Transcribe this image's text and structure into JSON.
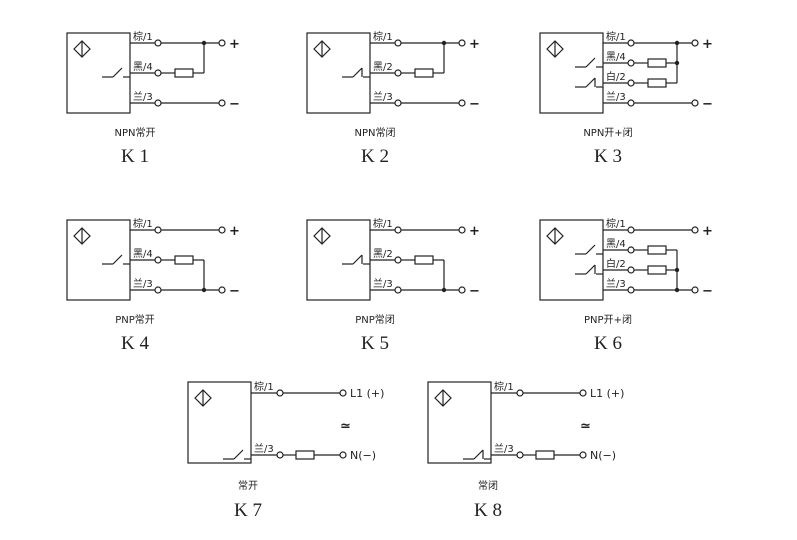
{
  "diagrams": [
    {
      "id": "K1",
      "caption": "NPN常开",
      "common": "top",
      "wires": [
        {
          "label": "棕/1",
          "terminal": "+"
        },
        {
          "label": "黑/4",
          "load": true,
          "switch": "NO"
        },
        {
          "label": "兰/3",
          "terminal": "−"
        }
      ]
    },
    {
      "id": "K2",
      "caption": "NPN常闭",
      "common": "top",
      "wires": [
        {
          "label": "棕/1",
          "terminal": "+"
        },
        {
          "label": "黑/2",
          "load": true,
          "switch": "NC"
        },
        {
          "label": "兰/3",
          "terminal": "−"
        }
      ]
    },
    {
      "id": "K3",
      "caption": "NPN开+闭",
      "common": "top",
      "wires": [
        {
          "label": "棕/1",
          "terminal": "+"
        },
        {
          "label": "黑/4",
          "load": true,
          "switch": "NO"
        },
        {
          "label": "白/2",
          "load": true,
          "switch": "NC"
        },
        {
          "label": "兰/3",
          "terminal": "−"
        }
      ]
    },
    {
      "id": "K4",
      "caption": "PNP常开",
      "common": "bottom",
      "wires": [
        {
          "label": "棕/1",
          "terminal": "+"
        },
        {
          "label": "黑/4",
          "load": true,
          "switch": "NO"
        },
        {
          "label": "兰/3",
          "terminal": "−"
        }
      ]
    },
    {
      "id": "K5",
      "caption": "PNP常闭",
      "common": "bottom",
      "wires": [
        {
          "label": "棕/1",
          "terminal": "+"
        },
        {
          "label": "黑/2",
          "load": true,
          "switch": "NC"
        },
        {
          "label": "兰/3",
          "terminal": "−"
        }
      ]
    },
    {
      "id": "K6",
      "caption": "PNP开+闭",
      "common": "bottom",
      "wires": [
        {
          "label": "棕/1",
          "terminal": "+"
        },
        {
          "label": "黑/4",
          "load": true,
          "switch": "NO"
        },
        {
          "label": "白/2",
          "load": true,
          "switch": "NC"
        },
        {
          "label": "兰/3",
          "terminal": "−"
        }
      ]
    },
    {
      "id": "K7",
      "caption": "常开",
      "common": "ac",
      "ac_symbol": "≃",
      "wires": [
        {
          "label": "棕/1",
          "terminal": "L1 (+)"
        },
        {
          "label": "兰/3",
          "load": true,
          "switch": "NO",
          "terminal": "N(−)"
        }
      ]
    },
    {
      "id": "K8",
      "caption": "常闭",
      "common": "ac",
      "ac_symbol": "≃",
      "wires": [
        {
          "label": "棕/1",
          "terminal": "L1 (+)"
        },
        {
          "label": "兰/3",
          "load": true,
          "switch": "NC",
          "terminal": "N(−)"
        }
      ]
    }
  ]
}
